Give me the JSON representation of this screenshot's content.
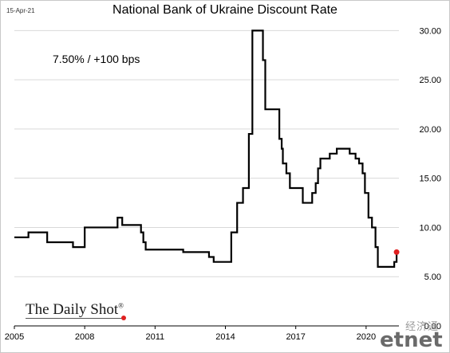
{
  "header": {
    "date_stamp": "15-Apr-21",
    "title": "National Bank of Ukraine Discount Rate"
  },
  "annotation": "7.50%  /  +100 bps",
  "branding": {
    "logo_text": "The Daily Shot",
    "logo_mark": "®",
    "watermark_cn": "经济通",
    "watermark_latin": "etnet"
  },
  "colors": {
    "line": "#000000",
    "last_point": "#e02020",
    "grid": "#d9d9d9"
  },
  "chart_data": {
    "type": "line",
    "title": "National Bank of Ukraine Discount Rate",
    "xlabel": "",
    "ylabel": "",
    "x_ticks": [
      "2005",
      "2008",
      "2011",
      "2014",
      "2017",
      "2020"
    ],
    "y_ticks": [
      "5.00",
      "10.00",
      "15.00",
      "20.00",
      "25.00",
      "30.00"
    ],
    "xlim": [
      2005.0,
      2021.4
    ],
    "ylim": [
      0,
      31
    ],
    "grid": "horizontal",
    "y_axis_side": "right",
    "step": true,
    "series": [
      {
        "points": [
          [
            2005.0,
            9.0
          ],
          [
            2005.6,
            9.5
          ],
          [
            2006.4,
            8.5
          ],
          [
            2007.5,
            8.0
          ],
          [
            2008.0,
            10.0
          ],
          [
            2009.4,
            11.0
          ],
          [
            2009.6,
            10.25
          ],
          [
            2010.4,
            9.5
          ],
          [
            2010.5,
            8.5
          ],
          [
            2010.6,
            7.75
          ],
          [
            2012.2,
            7.5
          ],
          [
            2013.3,
            7.0
          ],
          [
            2013.5,
            6.5
          ],
          [
            2014.25,
            9.5
          ],
          [
            2014.5,
            12.5
          ],
          [
            2014.75,
            14.0
          ],
          [
            2015.0,
            19.5
          ],
          [
            2015.15,
            30.0
          ],
          [
            2015.6,
            27.0
          ],
          [
            2015.7,
            22.0
          ],
          [
            2016.3,
            19.0
          ],
          [
            2016.4,
            18.0
          ],
          [
            2016.45,
            16.5
          ],
          [
            2016.6,
            15.5
          ],
          [
            2016.75,
            14.0
          ],
          [
            2017.3,
            12.5
          ],
          [
            2017.7,
            13.5
          ],
          [
            2017.85,
            14.5
          ],
          [
            2017.95,
            16.0
          ],
          [
            2018.05,
            17.0
          ],
          [
            2018.45,
            17.5
          ],
          [
            2018.75,
            18.0
          ],
          [
            2019.3,
            17.5
          ],
          [
            2019.55,
            17.0
          ],
          [
            2019.7,
            16.5
          ],
          [
            2019.85,
            15.5
          ],
          [
            2019.95,
            13.5
          ],
          [
            2020.1,
            11.0
          ],
          [
            2020.25,
            10.0
          ],
          [
            2020.4,
            8.0
          ],
          [
            2020.5,
            6.0
          ],
          [
            2021.2,
            6.5
          ],
          [
            2021.3,
            7.5
          ]
        ],
        "last_point": [
          2021.3,
          7.5
        ]
      }
    ]
  }
}
